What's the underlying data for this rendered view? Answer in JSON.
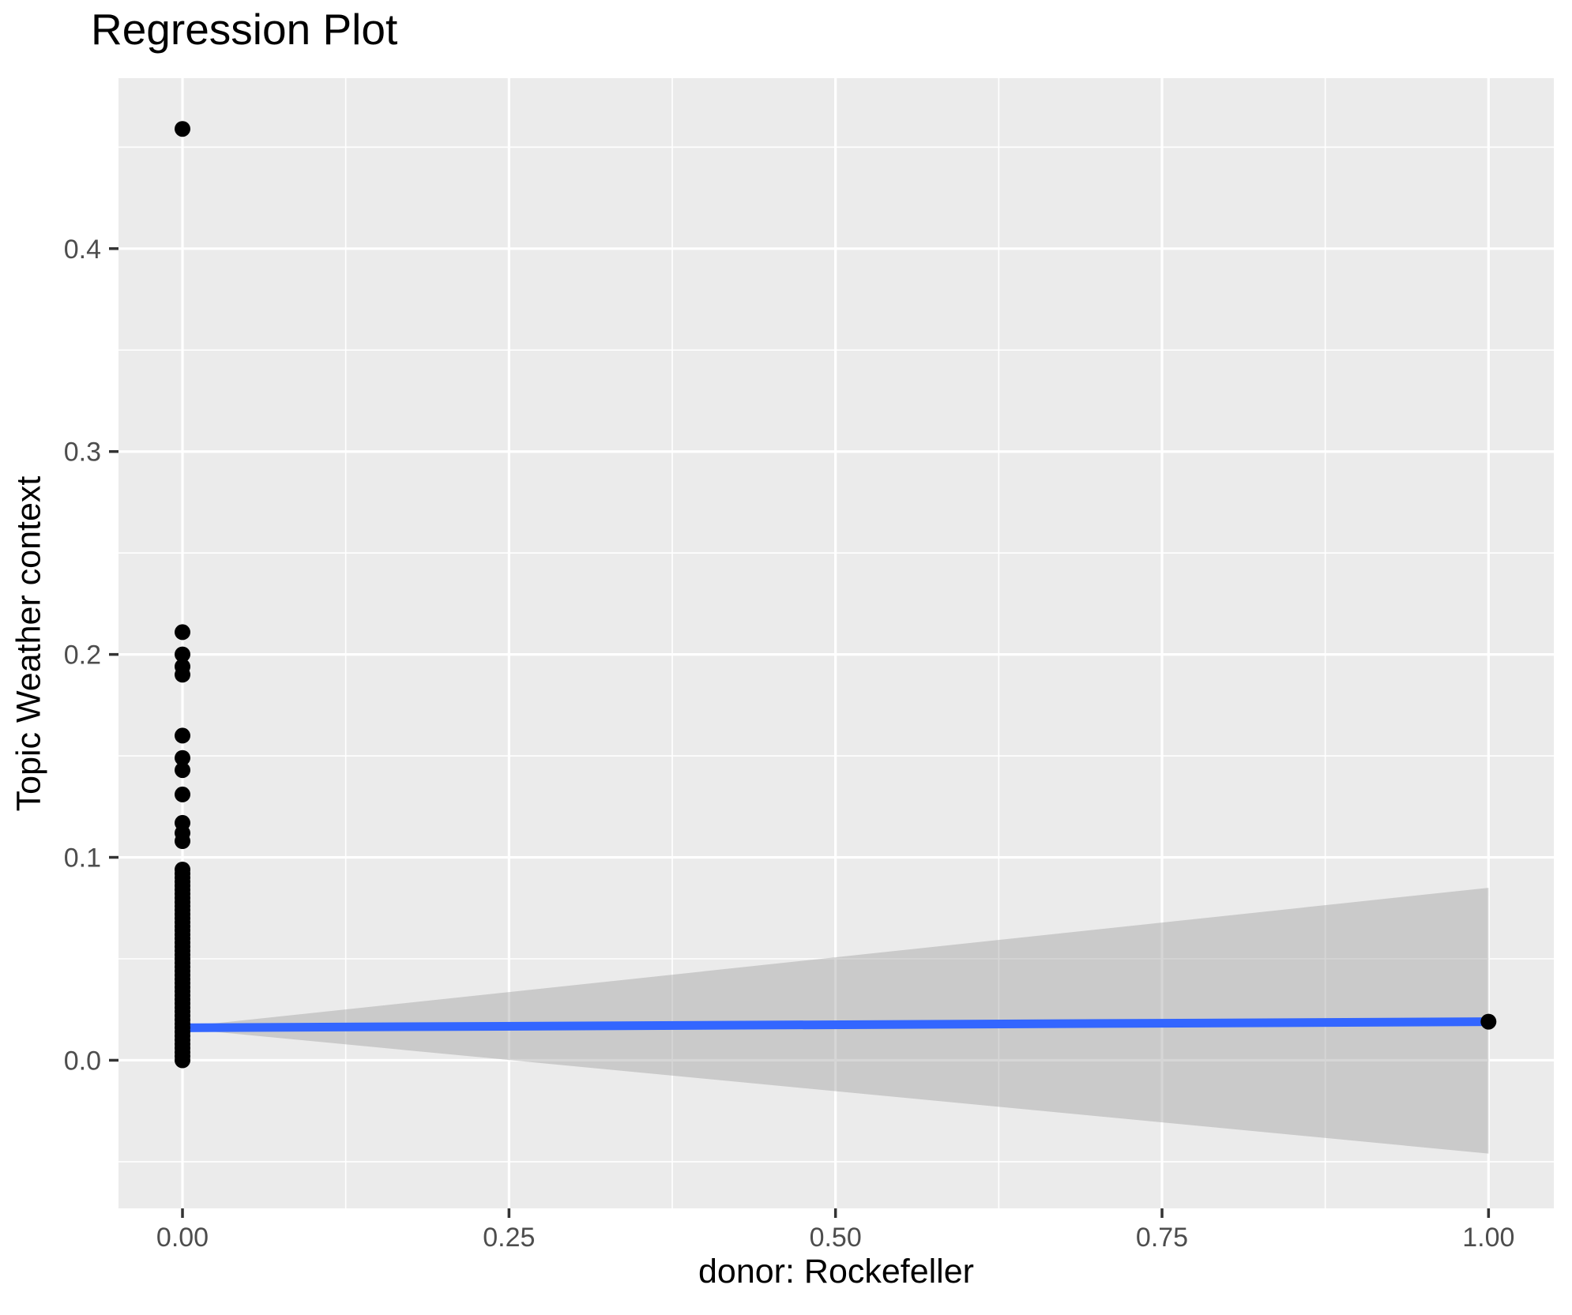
{
  "title": "Regression Plot",
  "x_axis": {
    "label": "donor: Rockefeller",
    "tick_labels": [
      "0.00",
      "0.25",
      "0.50",
      "0.75",
      "1.00"
    ],
    "tick_values": [
      0,
      0.25,
      0.5,
      0.75,
      1.0
    ]
  },
  "y_axis": {
    "label": "Topic Weather context",
    "tick_labels": [
      "0.0",
      "0.1",
      "0.2",
      "0.3",
      "0.4"
    ],
    "tick_values": [
      0,
      0.1,
      0.2,
      0.3,
      0.4
    ]
  },
  "colors": {
    "panel_background": "#EBEBEB",
    "gridline": "#FFFFFF",
    "point": "#000000",
    "regression_line": "#3366FF",
    "confidence_band": "#999999",
    "confidence_band_opacity": 0.4,
    "tick_label_text": "#4D4D4D",
    "tick_mark": "#333333",
    "title_text": "#000000"
  },
  "chart_data": {
    "type": "scatter",
    "title": "Regression Plot",
    "xlabel": "donor: Rockefeller",
    "ylabel": "Topic Weather context",
    "xlim": [
      -0.049,
      1.05
    ],
    "ylim": [
      -0.073,
      0.484
    ],
    "x_ticks": [
      0,
      0.25,
      0.5,
      0.75,
      1.0
    ],
    "y_ticks": [
      0,
      0.1,
      0.2,
      0.3,
      0.4
    ],
    "x_minor_gridlines": [
      0.125,
      0.375,
      0.625,
      0.875
    ],
    "y_minor_gridlines": [
      -0.05,
      0.05,
      0.15,
      0.25,
      0.35,
      0.45
    ],
    "grid": true,
    "legend": "none",
    "points": {
      "x_equals_0": [
        0.0,
        0.002,
        0.004,
        0.006,
        0.008,
        0.01,
        0.012,
        0.014,
        0.016,
        0.018,
        0.02,
        0.022,
        0.024,
        0.026,
        0.028,
        0.03,
        0.032,
        0.034,
        0.036,
        0.038,
        0.04,
        0.042,
        0.044,
        0.046,
        0.048,
        0.05,
        0.052,
        0.054,
        0.056,
        0.058,
        0.06,
        0.062,
        0.064,
        0.066,
        0.068,
        0.07,
        0.072,
        0.074,
        0.076,
        0.078,
        0.08,
        0.082,
        0.084,
        0.086,
        0.088,
        0.09,
        0.092,
        0.094,
        0.108,
        0.112,
        0.117,
        0.131,
        0.143,
        0.149,
        0.16,
        0.19,
        0.194,
        0.2,
        0.211,
        0.459
      ],
      "x_equals_1": [
        0.019
      ]
    },
    "regression_line": {
      "x": [
        0,
        1
      ],
      "y": [
        0.016,
        0.019
      ]
    },
    "confidence_band": {
      "polygon": [
        [
          0,
          0.0165
        ],
        [
          1,
          0.085
        ],
        [
          1,
          -0.046
        ],
        [
          0,
          0.0155
        ]
      ]
    }
  }
}
